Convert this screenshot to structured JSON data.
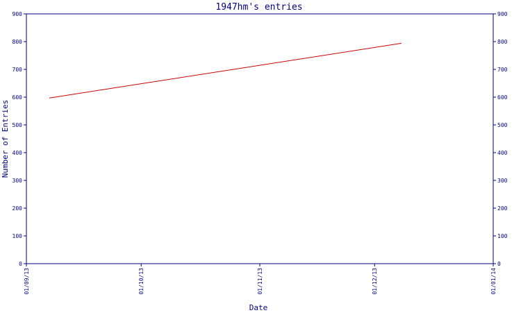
{
  "chart_data": {
    "type": "line",
    "title": "1947hm's entries",
    "xlabel": "Date",
    "ylabel": "Number of Entries",
    "x_ticks": [
      "01/09/13",
      "01/10/13",
      "01/11/13",
      "01/12/13",
      "01/01/14"
    ],
    "y_ticks": [
      0,
      100,
      200,
      300,
      400,
      500,
      600,
      700,
      800,
      900
    ],
    "xlim": [
      "2013-09-01",
      "2014-01-01"
    ],
    "ylim": [
      0,
      900
    ],
    "grid": false,
    "series": [
      {
        "x": [
          "2013-09-07",
          "2013-12-08"
        ],
        "y": [
          597,
          794
        ]
      }
    ],
    "colors": {
      "axis": "#000080",
      "line": "#cc0000",
      "text": "#000080",
      "title": "#000080",
      "background": "#ffffff"
    }
  }
}
